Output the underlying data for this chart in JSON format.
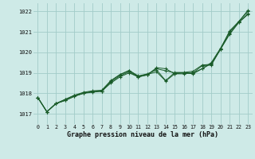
{
  "xlabel": "Graphe pression niveau de la mer (hPa)",
  "x_labels": [
    "0",
    "1",
    "2",
    "3",
    "4",
    "5",
    "6",
    "7",
    "8",
    "9",
    "10",
    "11",
    "12",
    "13",
    "14",
    "15",
    "16",
    "17",
    "18",
    "19",
    "20",
    "21",
    "22",
    "23"
  ],
  "ylim": [
    1016.5,
    1022.4
  ],
  "xlim": [
    -0.5,
    23.5
  ],
  "yticks": [
    1017,
    1018,
    1019,
    1020,
    1021,
    1022
  ],
  "bg_color": "#ceeae7",
  "grid_color": "#a2ccc8",
  "line_color": "#1a5c2a",
  "series": [
    [
      1017.8,
      1017.1,
      1017.5,
      1017.65,
      1017.85,
      1018.0,
      1018.1,
      1018.1,
      1018.5,
      1018.8,
      1019.0,
      1018.8,
      1018.9,
      1019.2,
      1019.1,
      1019.0,
      1019.0,
      1019.0,
      1019.2,
      1019.5,
      1020.2,
      1021.0,
      1021.5,
      1022.0
    ],
    [
      1017.8,
      1017.1,
      1017.5,
      1017.65,
      1017.85,
      1018.0,
      1018.05,
      1018.1,
      1018.55,
      1018.85,
      1019.05,
      1018.8,
      1018.9,
      1019.25,
      1019.2,
      1018.95,
      1019.0,
      1018.95,
      1019.2,
      1019.45,
      1020.15,
      1021.05,
      1021.5,
      1022.05
    ],
    [
      1017.8,
      1017.1,
      1017.5,
      1017.7,
      1017.9,
      1018.0,
      1018.1,
      1018.1,
      1018.6,
      1018.9,
      1019.1,
      1018.82,
      1018.92,
      1019.05,
      1018.6,
      1018.95,
      1018.95,
      1019.0,
      1019.35,
      1019.38,
      1020.15,
      1020.88,
      1021.45,
      1021.85
    ],
    [
      1017.8,
      1017.1,
      1017.5,
      1017.7,
      1017.9,
      1018.05,
      1018.12,
      1018.15,
      1018.62,
      1018.92,
      1019.12,
      1018.85,
      1018.95,
      1019.15,
      1018.62,
      1019.02,
      1019.02,
      1019.08,
      1019.38,
      1019.42,
      1020.15,
      1020.92,
      1021.48,
      1021.88
    ]
  ]
}
